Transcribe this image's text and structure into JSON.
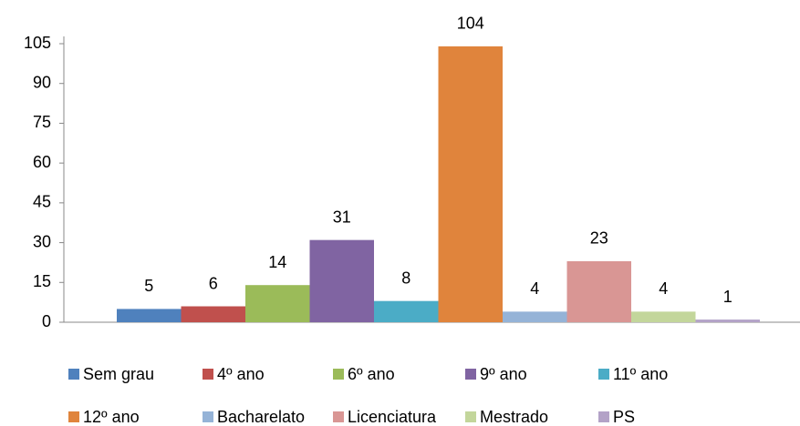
{
  "chart_data": {
    "type": "bar",
    "series": [
      {
        "name": "Sem grau",
        "color": "#4f81bd",
        "values": [
          5
        ]
      },
      {
        "name": "4º ano",
        "color": "#c0504d",
        "values": [
          6
        ]
      },
      {
        "name": "6º ano",
        "color": "#9bbb59",
        "values": [
          14
        ]
      },
      {
        "name": "9º ano",
        "color": "#8064a2",
        "values": [
          31
        ]
      },
      {
        "name": "11º ano",
        "color": "#4bacc6",
        "values": [
          8
        ]
      },
      {
        "name": "12º ano",
        "color": "#e0843c",
        "values": [
          104
        ]
      },
      {
        "name": "Bacharelato",
        "color": "#95b3d7",
        "values": [
          4
        ]
      },
      {
        "name": "Licenciatura",
        "color": "#d99694",
        "values": [
          23
        ]
      },
      {
        "name": "Mestrado",
        "color": "#c3d69b",
        "values": [
          4
        ]
      },
      {
        "name": "PS",
        "color": "#b3a2c7",
        "values": [
          1
        ]
      }
    ],
    "ylim": [
      0,
      105
    ],
    "yticks": [
      0,
      15,
      30,
      45,
      60,
      75,
      90,
      105
    ],
    "grid": false,
    "legend": "bottom"
  }
}
